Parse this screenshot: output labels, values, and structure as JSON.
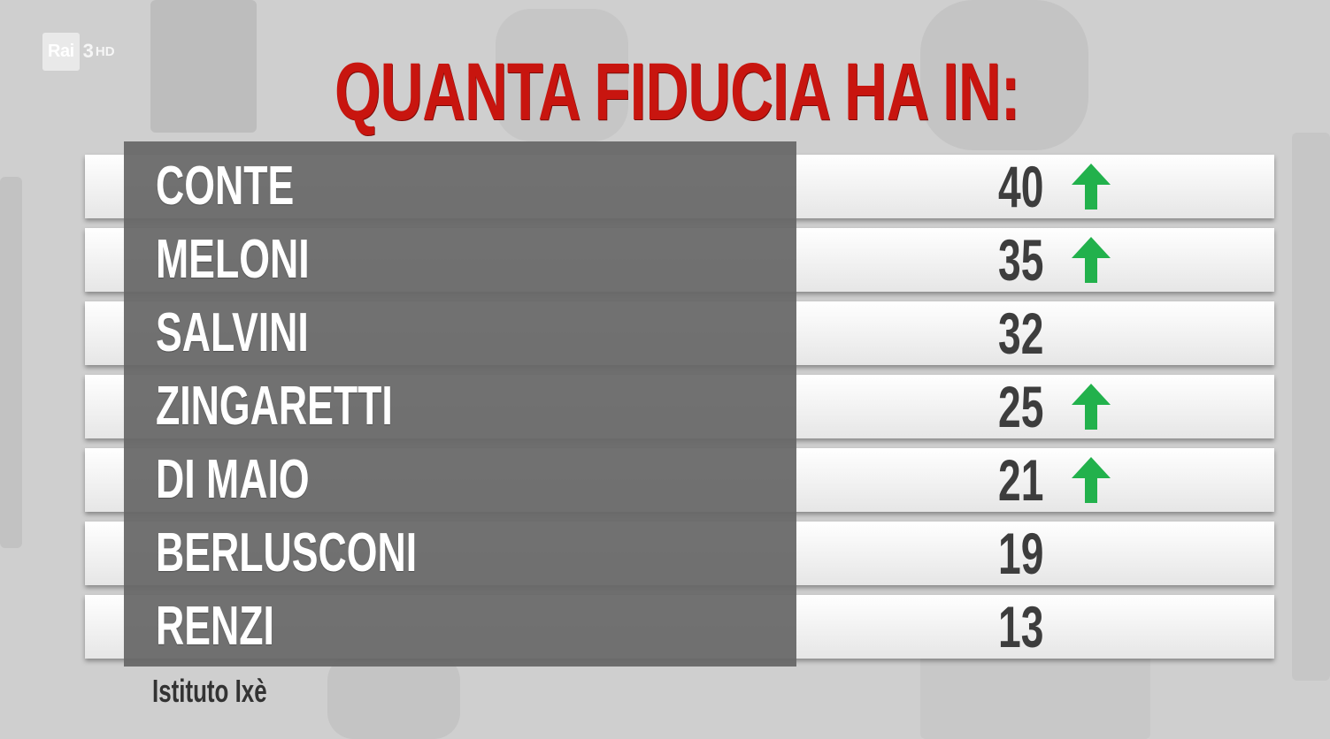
{
  "broadcaster": {
    "logo_text": "Rai",
    "channel_number": "3",
    "channel_suffix": "HD"
  },
  "chart_data": {
    "type": "table",
    "title": "QUANTA FIDUCIA HA IN:",
    "categories": [
      "CONTE",
      "MELONI",
      "SALVINI",
      "ZINGARETTI",
      "DI MAIO",
      "BERLUSCONI",
      "RENZI"
    ],
    "values": [
      40,
      35,
      32,
      25,
      21,
      19,
      13
    ],
    "trend_up": [
      true,
      true,
      false,
      true,
      true,
      false,
      false
    ],
    "source": "Istituto Ixè",
    "colors": {
      "title": "#c8150f",
      "arrow": "#22b14c",
      "name_panel": "#666666",
      "value_text": "#3d3d3d"
    }
  }
}
